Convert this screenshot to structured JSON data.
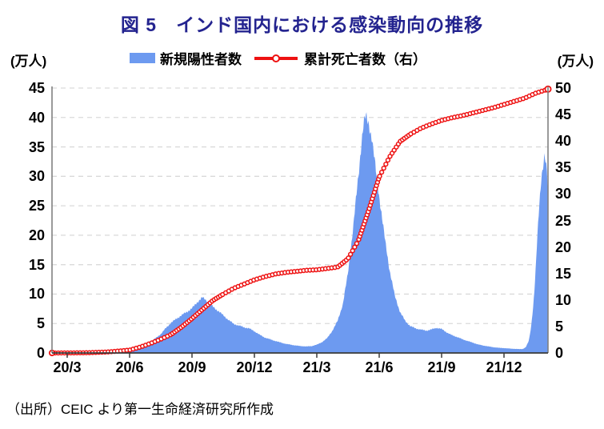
{
  "title": "図 5　インド国内における感染動向の推移",
  "legend": {
    "cases_label": "新規陽性者数",
    "deaths_label": "累計死亡者数（右）"
  },
  "axes": {
    "left_unit": "(万人)",
    "right_unit": "(万人)",
    "left_ticks": [
      0,
      5,
      10,
      15,
      20,
      25,
      30,
      35,
      40,
      45
    ],
    "right_ticks": [
      0,
      5,
      10,
      15,
      20,
      25,
      30,
      35,
      40,
      45,
      50
    ],
    "x_ticks": [
      "20/3",
      "20/6",
      "20/9",
      "20/12",
      "21/3",
      "21/6",
      "21/9",
      "21/12"
    ]
  },
  "source": "（出所）CEIC より第一生命経済研究所作成",
  "colors": {
    "title": "#23238f",
    "bars": "#6d9af0",
    "line": "#ee1111",
    "grid": "#dadada",
    "axis": "#808080",
    "baseline": "#3a3a3a"
  },
  "chart_data": {
    "type": "combo",
    "title": "図 5　インド国内における感染動向の推移",
    "x_unit": "months since 2020-03 (tick spacing = 3 months)",
    "x_range": [
      -0.73,
      23.12
    ],
    "x_tick_positions": [
      0,
      3,
      6,
      9,
      12,
      15,
      18,
      21
    ],
    "x_tick_labels": [
      "20/3",
      "20/6",
      "20/9",
      "20/12",
      "21/3",
      "21/6",
      "21/9",
      "21/12"
    ],
    "left_axis": {
      "label": "(万人)",
      "range": [
        0,
        45
      ],
      "grid": true
    },
    "right_axis": {
      "label": "(万人)",
      "range": [
        0,
        50
      ]
    },
    "legend_position": "top-center",
    "series": [
      {
        "name": "新規陽性者数",
        "type": "bar",
        "axis": "left",
        "color": "#6d9af0",
        "points": [
          [
            -0.73,
            0
          ],
          [
            0,
            0.01
          ],
          [
            0.5,
            0.03
          ],
          [
            1,
            0.1
          ],
          [
            1.5,
            0.16
          ],
          [
            2,
            0.28
          ],
          [
            2.5,
            0.5
          ],
          [
            3,
            0.85
          ],
          [
            3.5,
            1.3
          ],
          [
            4,
            1.9
          ],
          [
            4.25,
            2.6
          ],
          [
            4.5,
            3.3
          ],
          [
            4.75,
            4.4
          ],
          [
            5,
            5.3
          ],
          [
            5.25,
            6.0
          ],
          [
            5.5,
            6.6
          ],
          [
            5.75,
            7.2
          ],
          [
            6,
            7.8
          ],
          [
            6.25,
            8.9
          ],
          [
            6.5,
            9.7
          ],
          [
            6.7,
            9.2
          ],
          [
            7,
            8.1
          ],
          [
            7.25,
            7.4
          ],
          [
            7.5,
            6.6
          ],
          [
            7.75,
            5.8
          ],
          [
            8,
            5.1
          ],
          [
            8.25,
            4.8
          ],
          [
            8.5,
            4.5
          ],
          [
            8.75,
            4.3
          ],
          [
            9,
            3.8
          ],
          [
            9.25,
            3.2
          ],
          [
            9.5,
            2.7
          ],
          [
            9.75,
            2.4
          ],
          [
            10,
            2.1
          ],
          [
            10.25,
            1.85
          ],
          [
            10.5,
            1.6
          ],
          [
            10.75,
            1.45
          ],
          [
            11,
            1.3
          ],
          [
            11.25,
            1.2
          ],
          [
            11.5,
            1.15
          ],
          [
            11.75,
            1.2
          ],
          [
            12,
            1.45
          ],
          [
            12.25,
            1.9
          ],
          [
            12.5,
            2.6
          ],
          [
            12.75,
            3.9
          ],
          [
            13,
            5.6
          ],
          [
            13.25,
            8.5
          ],
          [
            13.5,
            14
          ],
          [
            13.75,
            22
          ],
          [
            14,
            31
          ],
          [
            14.15,
            37
          ],
          [
            14.25,
            40
          ],
          [
            14.35,
            41.4
          ],
          [
            14.5,
            40.2
          ],
          [
            14.65,
            37.5
          ],
          [
            14.8,
            33
          ],
          [
            15,
            27.5
          ],
          [
            15.25,
            20.5
          ],
          [
            15.5,
            14.5
          ],
          [
            15.75,
            10
          ],
          [
            16,
            7.2
          ],
          [
            16.25,
            5.6
          ],
          [
            16.5,
            4.7
          ],
          [
            16.75,
            4.3
          ],
          [
            17,
            4.1
          ],
          [
            17.25,
            3.9
          ],
          [
            17.5,
            4.1
          ],
          [
            17.75,
            4.4
          ],
          [
            18,
            4.2
          ],
          [
            18.25,
            3.6
          ],
          [
            18.5,
            3.1
          ],
          [
            18.75,
            2.8
          ],
          [
            19,
            2.4
          ],
          [
            19.25,
            2.1
          ],
          [
            19.5,
            1.8
          ],
          [
            19.75,
            1.5
          ],
          [
            20,
            1.3
          ],
          [
            20.25,
            1.15
          ],
          [
            20.5,
            1.0
          ],
          [
            20.75,
            0.9
          ],
          [
            21,
            0.85
          ],
          [
            21.25,
            0.78
          ],
          [
            21.5,
            0.72
          ],
          [
            21.75,
            0.68
          ],
          [
            21.9,
            0.7
          ],
          [
            22.05,
            1.0
          ],
          [
            22.2,
            2.2
          ],
          [
            22.3,
            4.5
          ],
          [
            22.4,
            8
          ],
          [
            22.5,
            13
          ],
          [
            22.6,
            20
          ],
          [
            22.7,
            26
          ],
          [
            22.8,
            31
          ],
          [
            22.95,
            34.7
          ],
          [
            23.05,
            32
          ],
          [
            23.12,
            28
          ]
        ]
      },
      {
        "name": "累計死亡者数（右）",
        "type": "line",
        "axis": "right",
        "color": "#ee1111",
        "marker": "open-circle",
        "points": [
          [
            -0.73,
            0
          ],
          [
            0,
            0.01
          ],
          [
            1,
            0.05
          ],
          [
            2,
            0.2
          ],
          [
            3,
            0.55
          ],
          [
            3.5,
            1.1
          ],
          [
            4,
            1.8
          ],
          [
            4.5,
            2.6
          ],
          [
            5,
            3.5
          ],
          [
            5.5,
            4.9
          ],
          [
            6,
            6.5
          ],
          [
            6.5,
            8.2
          ],
          [
            7,
            9.9
          ],
          [
            7.5,
            11.1
          ],
          [
            8,
            12.2
          ],
          [
            8.5,
            13.0
          ],
          [
            9,
            13.8
          ],
          [
            9.5,
            14.4
          ],
          [
            10,
            14.9
          ],
          [
            10.5,
            15.2
          ],
          [
            11,
            15.4
          ],
          [
            11.5,
            15.6
          ],
          [
            12,
            15.7
          ],
          [
            12.5,
            15.95
          ],
          [
            13,
            16.2
          ],
          [
            13.5,
            17.8
          ],
          [
            14,
            21.2
          ],
          [
            14.5,
            27.0
          ],
          [
            15,
            33.2
          ],
          [
            15.5,
            37.0
          ],
          [
            16,
            39.9
          ],
          [
            16.5,
            41.3
          ],
          [
            17,
            42.4
          ],
          [
            17.5,
            43.2
          ],
          [
            18,
            43.9
          ],
          [
            18.5,
            44.4
          ],
          [
            19,
            44.8
          ],
          [
            19.5,
            45.3
          ],
          [
            20,
            45.8
          ],
          [
            20.5,
            46.3
          ],
          [
            21,
            46.9
          ],
          [
            21.5,
            47.5
          ],
          [
            22,
            48.1
          ],
          [
            22.5,
            49.0
          ],
          [
            23.12,
            49.8
          ]
        ]
      }
    ]
  }
}
